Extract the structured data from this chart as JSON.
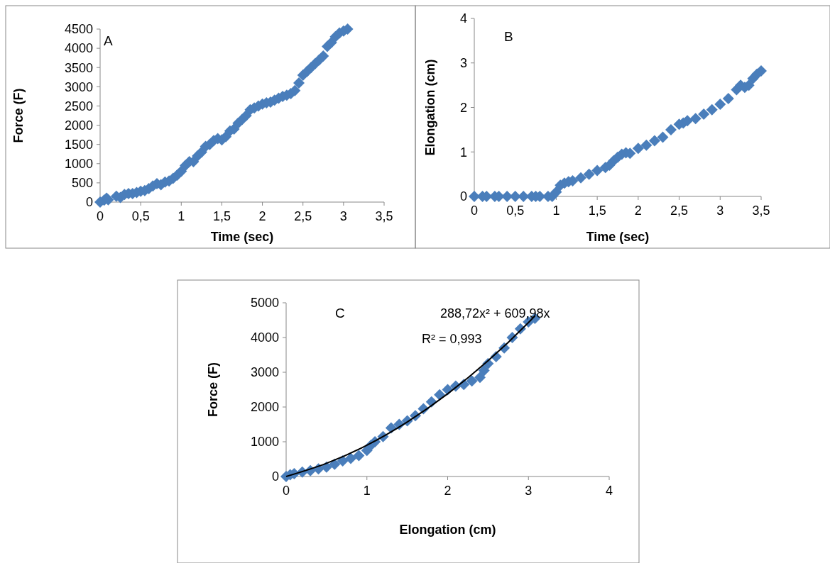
{
  "chart_data": [
    {
      "type": "scatter",
      "title": "A",
      "xlabel": "Time (sec)",
      "ylabel": "Force (F)",
      "marker": "diamond",
      "xlim": [
        0,
        3.5
      ],
      "ylim": [
        0,
        4500
      ],
      "xticks": [
        0,
        {
          "value": 0.5,
          "label": "0,5"
        },
        1,
        {
          "value": 1.5,
          "label": "1,5"
        },
        2,
        {
          "value": 2.5,
          "label": "2,5"
        },
        3,
        {
          "value": 3.5,
          "label": "3,5"
        }
      ],
      "yticks": [
        0,
        500,
        1000,
        1500,
        2000,
        2500,
        3000,
        3500,
        4000,
        4500
      ],
      "series": [
        {
          "color": "#4a7ebb",
          "x": [
            0,
            0.05,
            0.08,
            0.1,
            0.2,
            0.25,
            0.3,
            0.35,
            0.4,
            0.45,
            0.5,
            0.55,
            0.6,
            0.65,
            0.7,
            0.75,
            0.8,
            0.85,
            0.9,
            0.95,
            1.0,
            1.05,
            1.1,
            1.15,
            1.2,
            1.25,
            1.3,
            1.35,
            1.4,
            1.45,
            1.5,
            1.55,
            1.6,
            1.65,
            1.7,
            1.75,
            1.8,
            1.85,
            1.9,
            1.95,
            2.0,
            2.05,
            2.1,
            2.15,
            2.2,
            2.25,
            2.3,
            2.35,
            2.4,
            2.45,
            2.5,
            2.55,
            2.6,
            2.65,
            2.7,
            2.75,
            2.8,
            2.85,
            2.9,
            2.95,
            3.0,
            3.05
          ],
          "values": [
            0,
            50,
            100,
            60,
            150,
            120,
            200,
            220,
            220,
            250,
            280,
            300,
            350,
            420,
            480,
            450,
            520,
            550,
            620,
            700,
            800,
            950,
            1050,
            1050,
            1200,
            1300,
            1450,
            1500,
            1600,
            1650,
            1620,
            1700,
            1850,
            1900,
            2050,
            2150,
            2250,
            2400,
            2450,
            2500,
            2550,
            2580,
            2600,
            2650,
            2700,
            2750,
            2780,
            2820,
            2900,
            3100,
            3300,
            3400,
            3500,
            3600,
            3700,
            3800,
            4050,
            4150,
            4300,
            4400,
            4450,
            4500
          ]
        }
      ]
    },
    {
      "type": "scatter",
      "title": "B",
      "xlabel": "Time (sec)",
      "ylabel": "Elongation (cm)",
      "marker": "diamond",
      "xlim": [
        0,
        3.5
      ],
      "ylim": [
        0,
        4
      ],
      "xticks": [
        0,
        {
          "value": 0.5,
          "label": "0,5"
        },
        1,
        {
          "value": 1.5,
          "label": "1,5"
        },
        2,
        {
          "value": 2.5,
          "label": "2,5"
        },
        3,
        {
          "value": 3.5,
          "label": "3,5"
        }
      ],
      "yticks": [
        0,
        1,
        2,
        3,
        4
      ],
      "series": [
        {
          "color": "#4a7ebb",
          "x": [
            0,
            0.1,
            0.15,
            0.25,
            0.3,
            0.4,
            0.5,
            0.6,
            0.7,
            0.75,
            0.8,
            0.9,
            0.95,
            1.0,
            1.05,
            1.1,
            1.15,
            1.2,
            1.3,
            1.4,
            1.5,
            1.6,
            1.65,
            1.7,
            1.75,
            1.8,
            1.85,
            1.9,
            2.0,
            2.1,
            2.2,
            2.3,
            2.4,
            2.5,
            2.55,
            2.6,
            2.7,
            2.8,
            2.9,
            3.0,
            3.1,
            3.2,
            3.25,
            3.3,
            3.35,
            3.4,
            3.45,
            3.5
          ],
          "values": [
            0,
            0,
            0,
            0,
            0,
            0,
            0,
            0,
            0,
            0,
            0,
            0,
            0,
            0.1,
            0.25,
            0.3,
            0.33,
            0.35,
            0.42,
            0.5,
            0.58,
            0.65,
            0.7,
            0.8,
            0.88,
            0.95,
            0.98,
            0.97,
            1.08,
            1.15,
            1.25,
            1.33,
            1.5,
            1.62,
            1.65,
            1.7,
            1.75,
            1.85,
            1.95,
            2.07,
            2.2,
            2.4,
            2.5,
            2.45,
            2.5,
            2.65,
            2.75,
            2.82
          ]
        }
      ]
    },
    {
      "type": "scatter",
      "title": "C",
      "xlabel": "Elongation (cm)",
      "ylabel": "Force (F)",
      "marker": "diamond",
      "xlim": [
        0,
        4
      ],
      "ylim": [
        0,
        5000
      ],
      "xticks": [
        0,
        1,
        2,
        3,
        4
      ],
      "yticks": [
        0,
        1000,
        2000,
        3000,
        4000,
        5000
      ],
      "annotations": [
        "288,72x² + 609,98x",
        "R² = 0,993"
      ],
      "series": [
        {
          "color": "#4a7ebb",
          "x": [
            0,
            0.05,
            0.1,
            0.2,
            0.3,
            0.4,
            0.5,
            0.6,
            0.7,
            0.8,
            0.9,
            1.0,
            1.05,
            1.1,
            1.2,
            1.3,
            1.4,
            1.5,
            1.6,
            1.7,
            1.8,
            1.9,
            2.0,
            2.1,
            2.2,
            2.3,
            2.4,
            2.45,
            2.5,
            2.6,
            2.7,
            2.8,
            2.9,
            3.0,
            3.08
          ],
          "values": [
            0,
            50,
            80,
            130,
            170,
            220,
            270,
            350,
            450,
            520,
            600,
            750,
            900,
            1000,
            1150,
            1400,
            1500,
            1600,
            1750,
            1950,
            2150,
            2350,
            2500,
            2600,
            2650,
            2750,
            2850,
            3050,
            3250,
            3450,
            3700,
            4000,
            4250,
            4450,
            4550
          ]
        },
        {
          "type": "line",
          "color": "#000000",
          "marker": "none",
          "x": [
            0,
            0.5,
            1,
            1.5,
            2,
            2.5,
            3,
            3.08
          ],
          "values": [
            0,
            380,
            900,
            1570,
            2380,
            3330,
            4430,
            4620
          ]
        }
      ]
    }
  ]
}
